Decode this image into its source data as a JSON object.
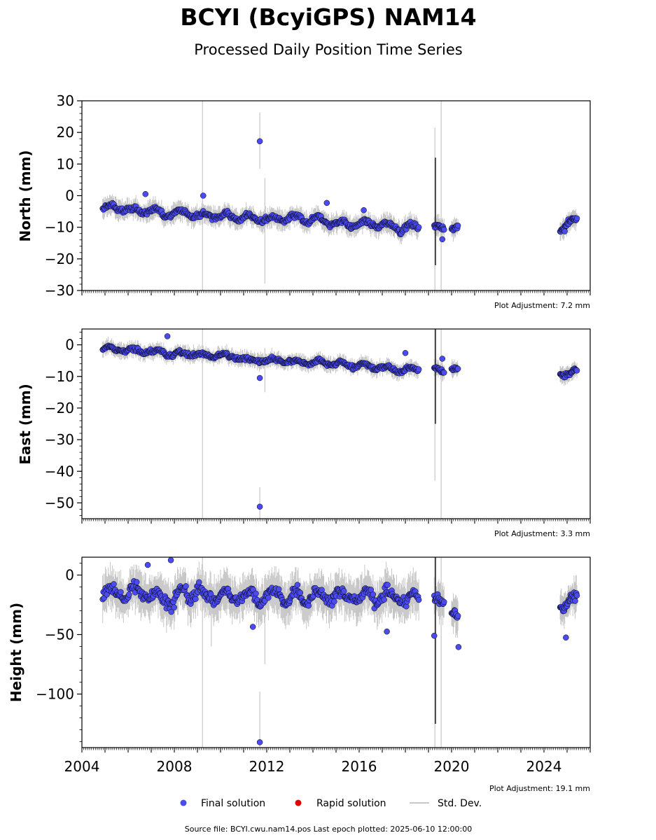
{
  "figure": {
    "title": "BCYI (BcyiGPS) NAM14",
    "subtitle": "Processed Daily Position Time Series",
    "source_footer": "Source file: BCYI.cwu.nam14.pos  Last epoch plotted: 2025-06-10 12:00:00"
  },
  "legend": {
    "placement": "bottom-center",
    "items": [
      {
        "label": "Final solution",
        "color": "#4b4bf0",
        "marker": "circle"
      },
      {
        "label": "Rapid solution",
        "color": "#e00000",
        "marker": "circle"
      },
      {
        "label": "Std. Dev.",
        "color": "#c8c8c8",
        "marker": "line"
      }
    ]
  },
  "colors": {
    "final_fill": "#4b4bf0",
    "marker_edge": "#000000",
    "error_bar": "#b4b4b4",
    "error_bar_dark": "#444444"
  },
  "chart_data": [
    {
      "type": "scatter",
      "panel": "north",
      "ylabel": "North (mm)",
      "adjustment_label": "Plot Adjustment: 7.2 mm",
      "xlim": [
        2004.0,
        2026.0
      ],
      "ylim": [
        -30,
        30
      ],
      "yticks": [
        30,
        20,
        10,
        0,
        -10,
        -20,
        -30
      ],
      "ytick_labels": [
        "30",
        "20",
        "10",
        "0",
        "−10",
        "−20",
        "−30"
      ],
      "show_xtick_labels": false,
      "segments": [
        {
          "t0": 2004.9,
          "t1": 2018.6,
          "start": -4,
          "end": -10,
          "noise": 1.4,
          "step": 0.03
        },
        {
          "t0": 2019.25,
          "t1": 2019.7,
          "start": -10,
          "end": -10,
          "noise": 1.5,
          "step": 0.025
        },
        {
          "t0": 2020.0,
          "t1": 2020.3,
          "start": -10,
          "end": -11,
          "noise": 1.5,
          "step": 0.025
        },
        {
          "t0": 2024.7,
          "t1": 2025.45,
          "start": -10,
          "end": -8,
          "noise": 1.4,
          "step": 0.025
        }
      ],
      "points": [
        {
          "x": 2011.7,
          "y": 17.2
        },
        {
          "x": 2006.75,
          "y": 0.5
        },
        {
          "x": 2009.25,
          "y": 0.0
        },
        {
          "x": 2014.6,
          "y": -2.3
        },
        {
          "x": 2016.2,
          "y": -4.6
        },
        {
          "x": 2019.6,
          "y": -13.8
        },
        {
          "x": 2024.9,
          "y": -11.3
        }
      ],
      "error_bars": [
        {
          "x": 2009.22,
          "lo": -30,
          "hi": 30,
          "dark": false
        },
        {
          "x": 2011.7,
          "lo": 8.5,
          "hi": 26.3,
          "dark": false
        },
        {
          "x": 2011.92,
          "lo": -27.8,
          "hi": 5.6,
          "dark": false
        },
        {
          "x": 2019.28,
          "lo": -30,
          "hi": 21.5,
          "dark": false
        },
        {
          "x": 2019.55,
          "lo": -30,
          "hi": 30,
          "dark": false
        },
        {
          "x": 2019.3,
          "lo": -22,
          "hi": 12,
          "dark": true
        }
      ]
    },
    {
      "type": "scatter",
      "panel": "east",
      "ylabel": "East (mm)",
      "adjustment_label": "Plot Adjustment: 3.3 mm",
      "xlim": [
        2004.0,
        2026.0
      ],
      "ylim": [
        -55,
        5
      ],
      "yticks": [
        0,
        -10,
        -20,
        -30,
        -40,
        -50
      ],
      "ytick_labels": [
        "0",
        "−10",
        "−20",
        "−30",
        "−40",
        "−50"
      ],
      "show_xtick_labels": false,
      "segments": [
        {
          "t0": 2004.9,
          "t1": 2018.6,
          "start": -1,
          "end": -8,
          "noise": 1.1,
          "step": 0.03
        },
        {
          "t0": 2019.25,
          "t1": 2019.7,
          "start": -8,
          "end": -8,
          "noise": 1.2,
          "step": 0.025
        },
        {
          "t0": 2020.0,
          "t1": 2020.3,
          "start": -8,
          "end": -8.5,
          "noise": 1.2,
          "step": 0.025
        },
        {
          "t0": 2024.7,
          "t1": 2025.45,
          "start": -9,
          "end": -8.5,
          "noise": 1.1,
          "step": 0.025
        }
      ],
      "points": [
        {
          "x": 2011.7,
          "y": -51.2
        },
        {
          "x": 2011.7,
          "y": -10.5
        },
        {
          "x": 2007.7,
          "y": 2.7
        },
        {
          "x": 2018.0,
          "y": -2.6
        },
        {
          "x": 2019.6,
          "y": -4.4
        }
      ],
      "error_bars": [
        {
          "x": 2009.22,
          "lo": -55,
          "hi": 5,
          "dark": false
        },
        {
          "x": 2011.7,
          "lo": -55,
          "hi": -45,
          "dark": false
        },
        {
          "x": 2011.92,
          "lo": -15,
          "hi": -1,
          "dark": false
        },
        {
          "x": 2019.28,
          "lo": -43,
          "hi": 5,
          "dark": false
        },
        {
          "x": 2019.55,
          "lo": -55,
          "hi": 5,
          "dark": false
        },
        {
          "x": 2019.3,
          "lo": -25,
          "hi": 5,
          "dark": true
        }
      ]
    },
    {
      "type": "scatter",
      "panel": "height",
      "ylabel": "Height (mm)",
      "adjustment_label": "Plot Adjustment: 19.1 mm",
      "xlim": [
        2004.0,
        2026.0
      ],
      "ylim": [
        -145,
        15
      ],
      "yticks": [
        0,
        -50,
        -100
      ],
      "ytick_labels": [
        "0",
        "−50",
        "−100"
      ],
      "show_xtick_labels": true,
      "xticks": [
        2004,
        2008,
        2012,
        2016,
        2020,
        2024
      ],
      "xtick_labels": [
        "2004",
        "2008",
        "2012",
        "2016",
        "2020",
        "2024"
      ],
      "segments": [
        {
          "t0": 2004.9,
          "t1": 2018.6,
          "start": -15,
          "end": -20,
          "noise": 8,
          "step": 0.03
        },
        {
          "t0": 2019.25,
          "t1": 2019.7,
          "start": -25,
          "end": -22,
          "noise": 7,
          "step": 0.025
        },
        {
          "t0": 2020.0,
          "t1": 2020.3,
          "start": -32,
          "end": -38,
          "noise": 7,
          "step": 0.025
        },
        {
          "t0": 2024.7,
          "t1": 2025.45,
          "start": -25,
          "end": -20,
          "noise": 6,
          "step": 0.025
        }
      ],
      "points": [
        {
          "x": 2011.7,
          "y": -140.5
        },
        {
          "x": 2007.85,
          "y": 12.5
        },
        {
          "x": 2006.85,
          "y": 8.5
        },
        {
          "x": 2019.25,
          "y": -51.0
        },
        {
          "x": 2020.3,
          "y": -60.5
        },
        {
          "x": 2024.95,
          "y": -52.5
        },
        {
          "x": 2017.2,
          "y": -47.5
        },
        {
          "x": 2011.4,
          "y": -43.5
        }
      ],
      "error_bars": [
        {
          "x": 2009.22,
          "lo": -145,
          "hi": 15,
          "dark": false
        },
        {
          "x": 2011.7,
          "lo": -145,
          "hi": -98,
          "dark": false
        },
        {
          "x": 2011.92,
          "lo": -75,
          "hi": 0,
          "dark": false
        },
        {
          "x": 2009.6,
          "lo": -60,
          "hi": -10,
          "dark": false
        },
        {
          "x": 2019.28,
          "lo": -145,
          "hi": 15,
          "dark": false
        },
        {
          "x": 2019.55,
          "lo": -145,
          "hi": 15,
          "dark": false
        },
        {
          "x": 2019.3,
          "lo": -125,
          "hi": 15,
          "dark": true
        }
      ]
    }
  ]
}
